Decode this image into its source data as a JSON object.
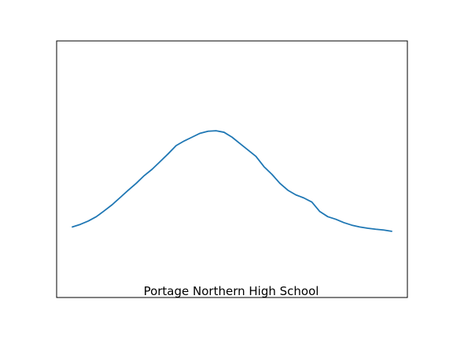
{
  "chart_data": {
    "type": "line",
    "caption": "Portage Northern High School",
    "x_ticks_visible": false,
    "y_ticks_visible": false,
    "grid": false,
    "xlim": [
      0,
      40
    ],
    "ylim": [
      0,
      1
    ],
    "series": [
      {
        "color": "#1f77b4",
        "x": [
          0,
          1,
          2,
          3,
          4,
          5,
          6,
          7,
          8,
          9,
          10,
          11,
          12,
          13,
          14,
          15,
          16,
          17,
          18,
          19,
          20,
          21,
          22,
          23,
          24,
          25,
          26,
          27,
          28,
          29,
          30,
          31,
          32,
          33,
          34,
          35,
          36,
          37,
          38,
          39,
          40
        ],
        "y": [
          0.275,
          0.285,
          0.298,
          0.315,
          0.338,
          0.362,
          0.39,
          0.418,
          0.445,
          0.475,
          0.5,
          0.53,
          0.56,
          0.592,
          0.61,
          0.625,
          0.64,
          0.648,
          0.65,
          0.644,
          0.625,
          0.6,
          0.575,
          0.55,
          0.51,
          0.48,
          0.445,
          0.418,
          0.4,
          0.388,
          0.372,
          0.335,
          0.315,
          0.305,
          0.292,
          0.282,
          0.275,
          0.27,
          0.266,
          0.263,
          0.258
        ]
      }
    ]
  }
}
